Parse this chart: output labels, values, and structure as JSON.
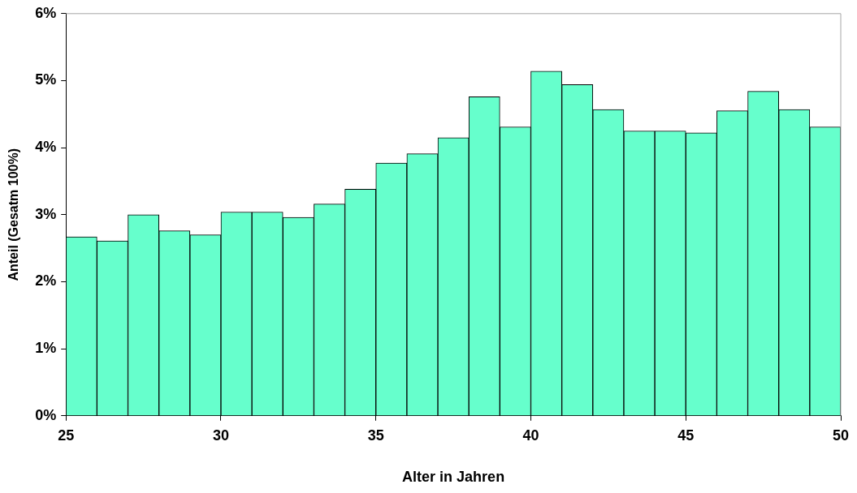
{
  "chart_data": {
    "type": "histogram",
    "xlabel": "Alter in Jahren",
    "ylabel": "Anteil (Gesatm 100%)",
    "bins": [
      25,
      26,
      27,
      28,
      29,
      30,
      31,
      32,
      33,
      34,
      35,
      36,
      37,
      38,
      39,
      40,
      41,
      42,
      43,
      44,
      45,
      46,
      47,
      48,
      49,
      50
    ],
    "values": [
      2.67,
      2.61,
      3.0,
      2.76,
      2.7,
      3.04,
      3.04,
      2.96,
      3.16,
      3.38,
      3.77,
      3.91,
      4.15,
      4.76,
      4.31,
      5.14,
      4.94,
      4.57,
      4.25,
      4.25,
      4.22,
      4.55,
      4.84,
      4.57,
      4.31
    ],
    "color": "#66ffcc",
    "xlim": [
      25,
      50
    ],
    "xticks": [
      25,
      30,
      35,
      40,
      45,
      50
    ],
    "ylim": [
      0,
      6
    ],
    "yticks": [
      {
        "value": 0,
        "label": "0%"
      },
      {
        "value": 1,
        "label": "1%"
      },
      {
        "value": 2,
        "label": "2%"
      },
      {
        "value": 3,
        "label": "3%"
      },
      {
        "value": 4,
        "label": "4%"
      },
      {
        "value": 5,
        "label": "5%"
      },
      {
        "value": 6,
        "label": "6%"
      }
    ],
    "grid": false,
    "legend": false
  }
}
